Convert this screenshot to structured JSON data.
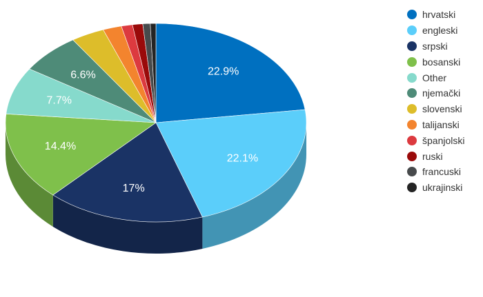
{
  "chart_data": {
    "type": "pie",
    "style": "3d",
    "legend_position": "right",
    "series": [
      {
        "name": "hrvatski",
        "value": 22.9,
        "label": "22.9%",
        "color": "#0070c0"
      },
      {
        "name": "engleski",
        "value": 22.1,
        "label": "22.1%",
        "color": "#5bcefa"
      },
      {
        "name": "srpski",
        "value": 17.0,
        "label": "17%",
        "color": "#1a3365"
      },
      {
        "name": "bosanski",
        "value": 14.4,
        "label": "14.4%",
        "color": "#7fc04b"
      },
      {
        "name": "Other",
        "value": 7.7,
        "label": "7.7%",
        "color": "#86dacc"
      },
      {
        "name": "njemački",
        "value": 6.6,
        "label": "6.6%",
        "color": "#4e8b78"
      },
      {
        "name": "slovenski",
        "value": 3.6,
        "label": "",
        "color": "#ddbd2a"
      },
      {
        "name": "talijanski",
        "value": 2.0,
        "label": "",
        "color": "#f3842e"
      },
      {
        "name": "španjolski",
        "value": 1.2,
        "label": "",
        "color": "#dc3a3f"
      },
      {
        "name": "ruski",
        "value": 1.1,
        "label": "",
        "color": "#9a0a0a"
      },
      {
        "name": "francuski",
        "value": 0.8,
        "label": "",
        "color": "#474a4c"
      },
      {
        "name": "ukrajinski",
        "value": 0.6,
        "label": "",
        "color": "#242424"
      }
    ]
  }
}
